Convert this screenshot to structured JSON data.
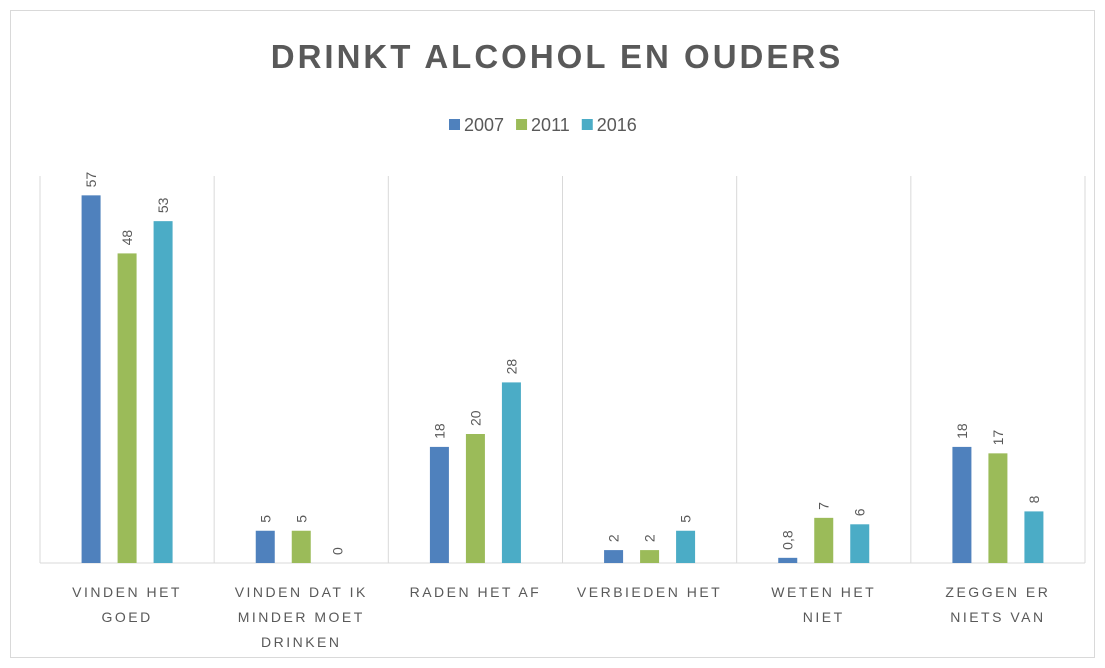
{
  "chart_data": {
    "type": "bar",
    "title": "DRINKT ALCOHOL EN OUDERS",
    "categories": [
      "VINDEN HET GOED",
      "VINDEN DAT IK MINDER MOET DRINKEN",
      "RADEN HET AF",
      "VERBIEDEN HET",
      "WETEN HET NIET",
      "ZEGGEN ER NIETS VAN"
    ],
    "series": [
      {
        "name": "2007",
        "color": "#4f81bd",
        "values": [
          57,
          5,
          18,
          2,
          0.8,
          18
        ],
        "value_labels": [
          "57",
          "5",
          "18",
          "2",
          "0,8",
          "18"
        ]
      },
      {
        "name": "2011",
        "color": "#9bbb59",
        "values": [
          48,
          5,
          20,
          2,
          7,
          17
        ]
      },
      {
        "name": "2016",
        "color": "#4bacc6",
        "values": [
          53,
          0,
          28,
          5,
          6,
          8
        ]
      }
    ],
    "ylim": [
      0,
      60
    ],
    "legend": "top"
  }
}
